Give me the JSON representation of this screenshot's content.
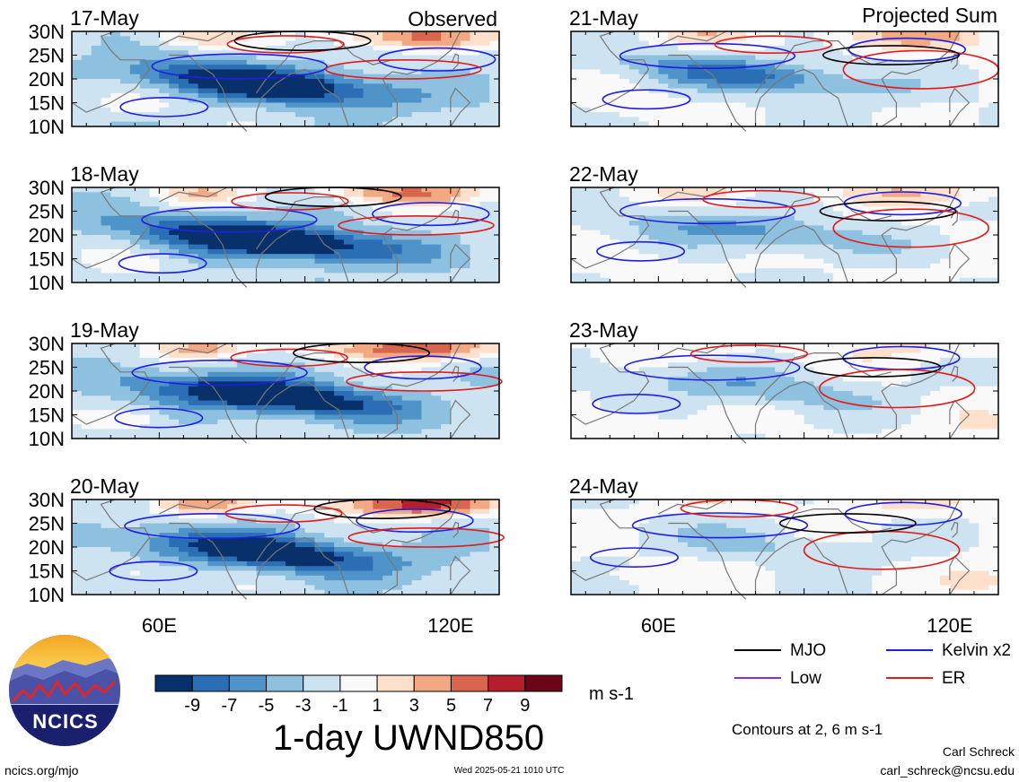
{
  "title": "1-day UWND850",
  "units": "m s-1",
  "columns": [
    {
      "header": "Observed",
      "panels": [
        {
          "date": "17-May",
          "sample": 0
        },
        {
          "date": "18-May",
          "sample": 1
        },
        {
          "date": "19-May",
          "sample": 2
        },
        {
          "date": "20-May",
          "sample": 3
        }
      ]
    },
    {
      "header": "Projected Sum",
      "panels": [
        {
          "date": "21-May",
          "sample": 4
        },
        {
          "date": "22-May",
          "sample": 5
        },
        {
          "date": "23-May",
          "sample": 6
        },
        {
          "date": "24-May",
          "sample": 7
        }
      ]
    }
  ],
  "lat_labels": [
    "30N",
    "25N",
    "20N",
    "15N",
    "10N"
  ],
  "lon_labels": [
    "60E",
    "120E"
  ],
  "colorbar": {
    "colors": [
      "#08306b",
      "#2a6fb5",
      "#4e94c8",
      "#8ec0df",
      "#cde3f1",
      "#f9f9f9",
      "#fde0cc",
      "#f2a983",
      "#d8664f",
      "#b41e2d",
      "#6b0519"
    ],
    "labels": [
      "-9",
      "-7",
      "-5",
      "-3",
      "-1",
      "1",
      "3",
      "5",
      "7",
      "9"
    ]
  },
  "legend": [
    {
      "label": "MJO",
      "color": "#000000"
    },
    {
      "label": "Kelvin x2",
      "color": "#1e1ee6"
    },
    {
      "label": "Low",
      "color": "#8b2be2"
    },
    {
      "label": "ER",
      "color": "#e21a1a"
    }
  ],
  "contours_note": "Contours at 2, 6 m s-1",
  "logo_text": "NCICS",
  "footer": {
    "left": "ncics.org/mjo",
    "center": "Wed 2025-05-21 1010 UTC",
    "author": "Carl Schreck",
    "email": "carl_schreck@ncsu.edu"
  }
}
